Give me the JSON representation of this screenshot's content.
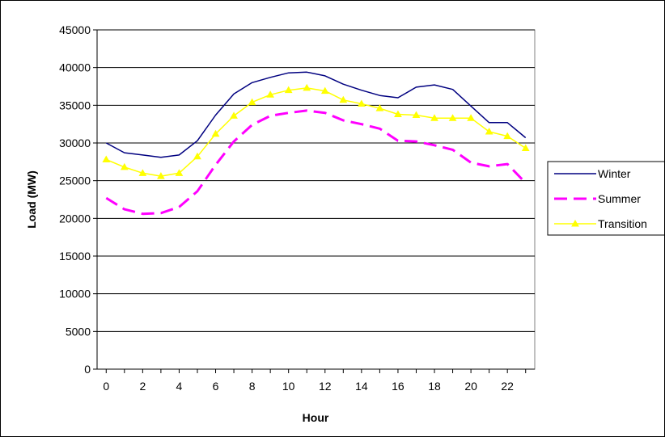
{
  "chart_data": {
    "type": "line",
    "xlabel": "Hour",
    "ylabel": "Load (MW)",
    "xlim": [
      -0.5,
      23.5
    ],
    "ylim": [
      0,
      45000
    ],
    "x_ticks": [
      0,
      2,
      4,
      6,
      8,
      10,
      12,
      14,
      16,
      18,
      20,
      22
    ],
    "y_ticks": [
      0,
      5000,
      10000,
      15000,
      20000,
      25000,
      30000,
      35000,
      40000,
      45000
    ],
    "grid": "horizontal",
    "legend_position": "right",
    "x": [
      0,
      1,
      2,
      3,
      4,
      5,
      6,
      7,
      8,
      9,
      10,
      11,
      12,
      13,
      14,
      15,
      16,
      17,
      18,
      19,
      20,
      21,
      22,
      23
    ],
    "series": [
      {
        "name": "Winter",
        "color": "#000080",
        "style": "solid",
        "marker": "none",
        "values": [
          30000,
          28700,
          28400,
          28100,
          28400,
          30300,
          33700,
          36500,
          38000,
          38700,
          39300,
          39400,
          38900,
          37800,
          37000,
          36300,
          36000,
          37400,
          37700,
          37100,
          34900,
          32700,
          32700,
          30700
        ]
      },
      {
        "name": "Summer",
        "color": "#FF00FF",
        "style": "dashed",
        "marker": "none",
        "values": [
          22700,
          21200,
          20600,
          20700,
          21500,
          23600,
          27100,
          30200,
          32400,
          33600,
          34000,
          34300,
          34000,
          33000,
          32500,
          31900,
          30300,
          30200,
          29700,
          29100,
          27400,
          26900,
          27200,
          24700
        ]
      },
      {
        "name": "Transition",
        "color": "#FFFF00",
        "style": "solid",
        "marker": "triangle",
        "values": [
          27800,
          26800,
          26000,
          25600,
          26000,
          28200,
          31200,
          33600,
          35400,
          36400,
          37000,
          37300,
          36900,
          35700,
          35200,
          34600,
          33800,
          33700,
          33300,
          33300,
          33300,
          31500,
          30900,
          29300
        ]
      }
    ]
  }
}
